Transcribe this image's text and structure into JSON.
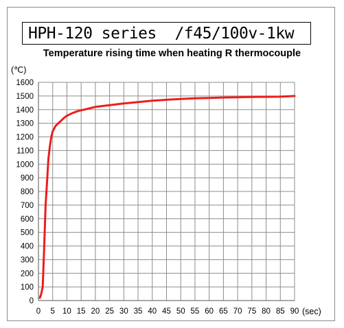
{
  "header": {
    "title": "HPH-120 series  /f45/100v-1kw"
  },
  "chart_data": {
    "type": "line",
    "title": "Temperature rising time when heating R thermocouple",
    "xlabel": "(sec)",
    "ylabel": "(℃)",
    "xlim": [
      0,
      90
    ],
    "ylim": [
      0,
      1600
    ],
    "grid": true,
    "x_ticks": [
      0,
      5,
      10,
      15,
      20,
      25,
      30,
      35,
      40,
      45,
      50,
      55,
      60,
      65,
      70,
      75,
      80,
      85,
      90
    ],
    "y_ticks": [
      0,
      100,
      200,
      300,
      400,
      500,
      600,
      700,
      800,
      900,
      1000,
      1100,
      1200,
      1300,
      1400,
      1500,
      1600
    ],
    "series": [
      {
        "color": "#ee1c1c",
        "x": [
          0.5,
          1,
          1.5,
          2,
          2.5,
          3,
          3.5,
          4,
          4.5,
          5,
          6,
          7,
          8,
          9,
          10,
          12,
          14,
          16,
          18,
          20,
          22,
          24,
          26,
          28,
          30,
          35,
          40,
          45,
          50,
          55,
          60,
          65,
          70,
          75,
          80,
          85,
          90
        ],
        "y": [
          20,
          50,
          100,
          380,
          700,
          860,
          1040,
          1130,
          1200,
          1240,
          1280,
          1300,
          1320,
          1340,
          1355,
          1375,
          1390,
          1400,
          1410,
          1420,
          1425,
          1430,
          1435,
          1440,
          1445,
          1455,
          1465,
          1472,
          1478,
          1483,
          1486,
          1489,
          1491,
          1493,
          1494,
          1495,
          1500
        ]
      }
    ]
  }
}
